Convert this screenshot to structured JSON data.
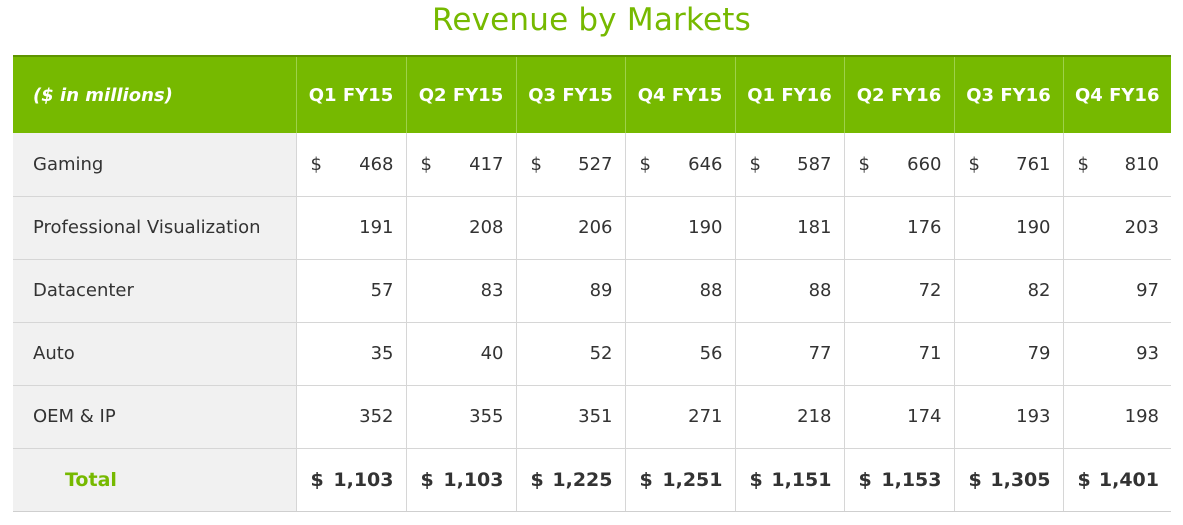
{
  "title": "Revenue by Markets",
  "table": {
    "columns": [
      "($ in millions)",
      "Q1 FY15",
      "Q2 FY15",
      "Q3 FY15",
      "Q4 FY15",
      "Q1 FY16",
      "Q2 FY16",
      "Q3 FY16",
      "Q4 FY16"
    ],
    "currency_symbol": "$",
    "rows": [
      {
        "label": "Gaming",
        "values": [
          "468",
          "417",
          "527",
          "646",
          "587",
          "660",
          "761",
          "810"
        ]
      },
      {
        "label": "Professional Visualization",
        "values": [
          "191",
          "208",
          "206",
          "190",
          "181",
          "176",
          "190",
          "203"
        ]
      },
      {
        "label": "Datacenter",
        "values": [
          "57",
          "83",
          "89",
          "88",
          "88",
          "72",
          "82",
          "97"
        ]
      },
      {
        "label": "Auto",
        "values": [
          "35",
          "40",
          "52",
          "56",
          "77",
          "71",
          "79",
          "93"
        ]
      },
      {
        "label": "OEM & IP",
        "values": [
          "352",
          "355",
          "351",
          "271",
          "218",
          "174",
          "193",
          "198"
        ]
      }
    ],
    "total": {
      "label": "Total",
      "values": [
        "1,103",
        "1,103",
        "1,225",
        "1,251",
        "1,151",
        "1,153",
        "1,305",
        "1,401"
      ]
    }
  },
  "colors": {
    "brand_green": "#76b900",
    "label_column_bg": "#f1f1f1",
    "grid_line": "#d6d6d6"
  }
}
